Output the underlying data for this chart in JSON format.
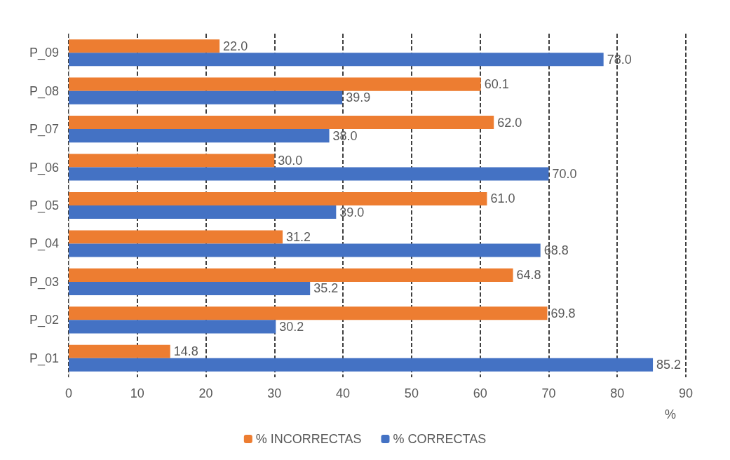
{
  "chart_data": {
    "type": "bar",
    "orientation": "horizontal",
    "xlabel": "%",
    "categories": [
      "P_09",
      "P_08",
      "P_07",
      "P_06",
      "P_05",
      "P_04",
      "P_03",
      "P_02",
      "P_01"
    ],
    "series": [
      {
        "name": "% INCORRECTAS",
        "color": "#ed7d31",
        "values": [
          22.0,
          60.1,
          62.0,
          30.0,
          61.0,
          31.2,
          64.8,
          69.8,
          14.8
        ],
        "value_labels": [
          "22.0",
          "60.1",
          "62.0",
          "30.0",
          "61.0",
          "31.2",
          "64.8",
          "69.8",
          "14.8"
        ]
      },
      {
        "name": "% CORRECTAS",
        "color": "#4472c4",
        "values": [
          78.0,
          39.9,
          38.0,
          70.0,
          39.0,
          68.8,
          35.2,
          30.2,
          85.2
        ],
        "value_labels": [
          "78.0",
          "39.9",
          "38.0",
          "70.0",
          "39.0",
          "68.8",
          "35.2",
          "30.2",
          "85.2"
        ]
      }
    ],
    "xlim": [
      0,
      90
    ],
    "xticks": [
      0,
      10,
      20,
      30,
      40,
      50,
      60,
      70,
      80,
      90
    ],
    "grid": "x",
    "legend": "bottom"
  }
}
